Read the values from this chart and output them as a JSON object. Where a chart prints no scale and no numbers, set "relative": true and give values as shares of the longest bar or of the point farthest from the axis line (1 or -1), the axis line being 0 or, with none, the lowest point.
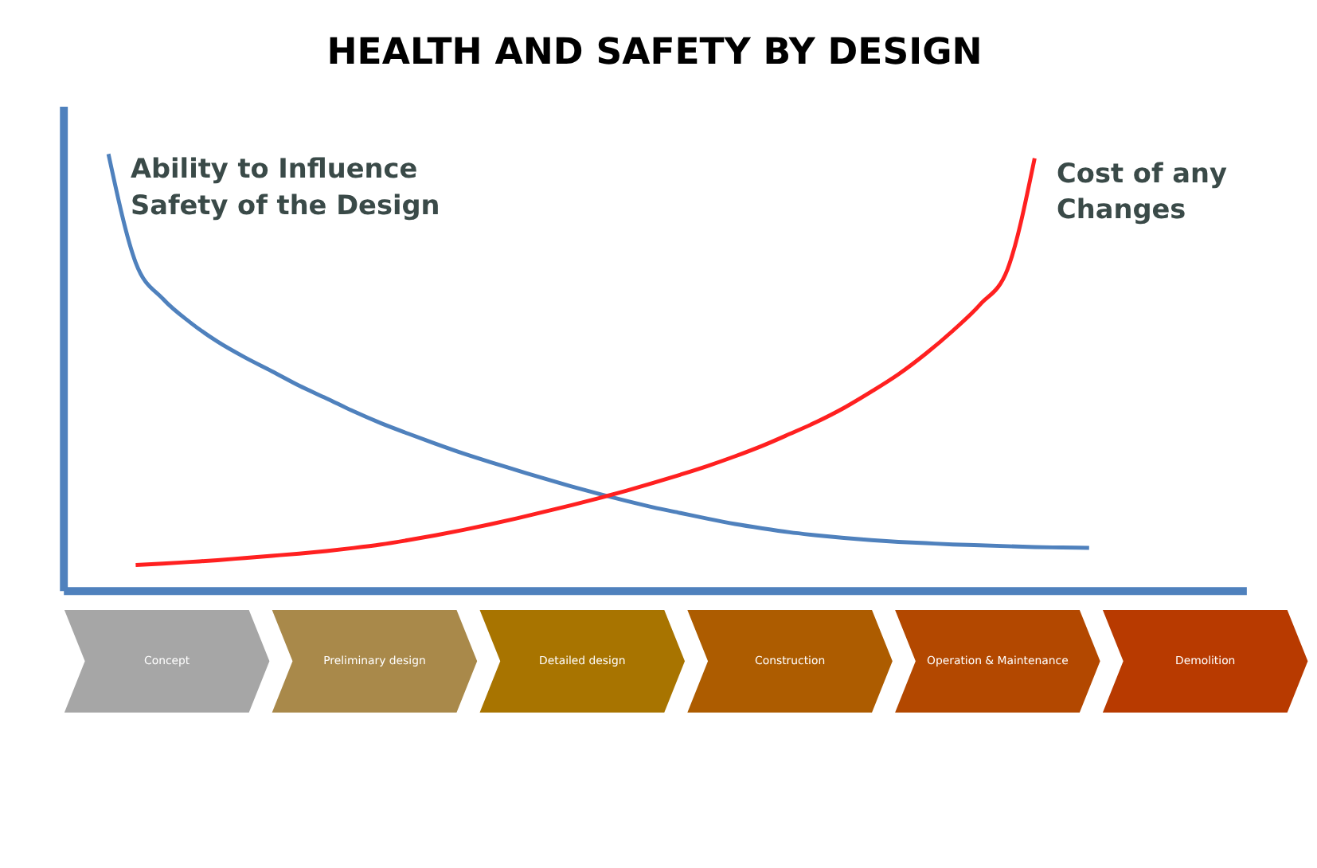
{
  "chart_data": {
    "type": "line",
    "title": "HEALTH AND SAFETY BY DESIGN",
    "relative": true,
    "legend": false,
    "marker": "none",
    "line_style": "solid",
    "grid": false,
    "tick_labels": false,
    "categories": [
      null,
      null,
      null,
      null,
      null,
      null,
      null,
      null,
      null,
      null,
      null,
      null,
      null,
      null,
      null,
      null,
      null,
      null,
      null,
      null,
      null,
      null,
      null,
      null,
      null,
      null,
      null,
      null,
      null,
      null,
      null,
      null,
      null,
      null,
      null,
      null,
      null
    ],
    "series": [
      {
        "name": "Ability to Influence\n  Safety of the Design",
        "color": "#4f81bd",
        "values": [
          1.0,
          0.751,
          0.668,
          0.614,
          0.57,
          0.534,
          0.502,
          0.469,
          0.44,
          0.41,
          0.383,
          0.359,
          0.336,
          0.314,
          0.294,
          0.275,
          0.256,
          0.238,
          0.221,
          0.205,
          0.19,
          0.177,
          0.164,
          0.152,
          0.142,
          0.133,
          0.126,
          0.12,
          0.115,
          0.111,
          0.108,
          0.105,
          0.103,
          0.101,
          0.099,
          0.098,
          0.097
        ]
      },
      {
        "name": "Cost of any\n Changes",
        "color": "#ff2020",
        "values": [
          null,
          0.058,
          0.061,
          0.065,
          0.069,
          0.074,
          0.079,
          0.084,
          0.09,
          0.097,
          0.105,
          0.115,
          0.126,
          0.138,
          0.151,
          0.165,
          0.18,
          0.195,
          0.211,
          0.228,
          0.246,
          0.265,
          0.285,
          0.307,
          0.331,
          0.358,
          0.386,
          0.418,
          0.455,
          0.495,
          0.542,
          0.595,
          0.655,
          0.735,
          0.99,
          null,
          null
        ]
      }
    ],
    "annotations": [
      "Concept",
      "Preliminary design",
      "Detailed design",
      "Construction",
      "Operation & Maintenance",
      "Demolition"
    ]
  }
}
